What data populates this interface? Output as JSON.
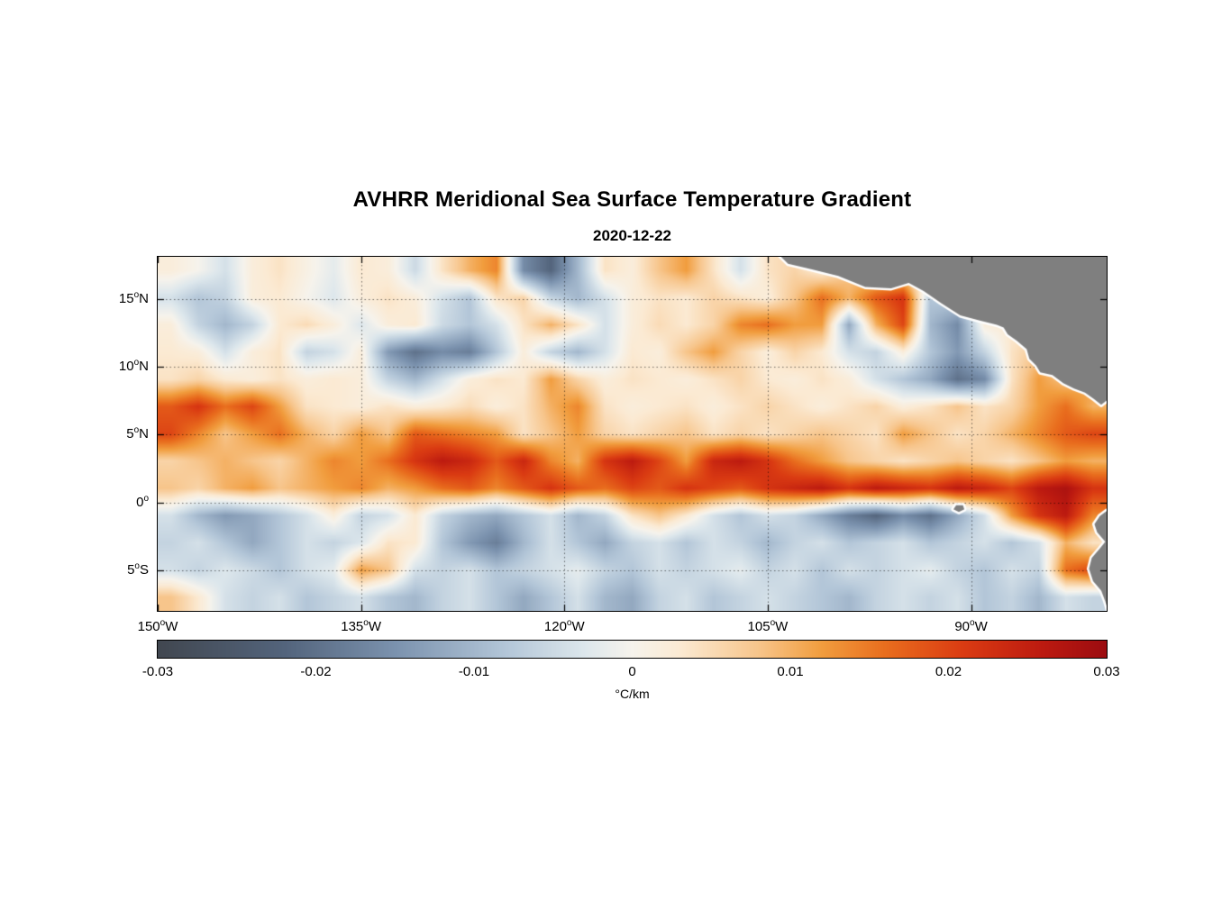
{
  "figure": {
    "title": "AVHRR Meridional Sea Surface Temperature Gradient",
    "subtitle": "2020-12-22"
  },
  "chart_data": {
    "type": "heatmap",
    "title": "AVHRR Meridional Sea Surface Temperature Gradient",
    "date": "2020-12-22",
    "units": "°C/km",
    "x": {
      "range": [
        -150,
        -80
      ],
      "ticks": [
        -150,
        -135,
        -120,
        -105,
        -90
      ],
      "tick_labels": [
        {
          "num": "150",
          "deg": "o",
          "hem": "W"
        },
        {
          "num": "135",
          "deg": "o",
          "hem": "W"
        },
        {
          "num": "120",
          "deg": "o",
          "hem": "W"
        },
        {
          "num": "105",
          "deg": "o",
          "hem": "W"
        },
        {
          "num": "90",
          "deg": "o",
          "hem": "W"
        }
      ]
    },
    "y": {
      "range": [
        18.12,
        -8.0
      ],
      "ticks": [
        15,
        10,
        5,
        0,
        -5
      ],
      "tick_labels": [
        {
          "num": "15",
          "deg": "o",
          "hem": "N"
        },
        {
          "num": "10",
          "deg": "o",
          "hem": "N"
        },
        {
          "num": "5",
          "deg": "o",
          "hem": "N"
        },
        {
          "num": "0",
          "deg": "o",
          "hem": ""
        },
        {
          "num": "5",
          "deg": "o",
          "hem": "S"
        }
      ]
    },
    "grid_on": true,
    "colorbar": {
      "label": "°C/km",
      "range": [
        -0.03,
        0.03
      ],
      "ticks": [
        -0.03,
        -0.02,
        -0.01,
        0,
        0.01,
        0.02,
        0.03
      ],
      "tick_labels": [
        "-0.03",
        "-0.02",
        "-0.01",
        "0",
        "0.01",
        "0.02",
        "0.03"
      ],
      "colormap_stops": [
        {
          "v": -0.03,
          "c": "#414750"
        },
        {
          "v": -0.022,
          "c": "#53647c"
        },
        {
          "v": -0.015,
          "c": "#7b92ae"
        },
        {
          "v": -0.008,
          "c": "#b3c6d8"
        },
        {
          "v": -0.003,
          "c": "#dde7ec"
        },
        {
          "v": 0.0,
          "c": "#f6f3ec"
        },
        {
          "v": 0.003,
          "c": "#fbead3"
        },
        {
          "v": 0.008,
          "c": "#f7c58b"
        },
        {
          "v": 0.012,
          "c": "#f19d3e"
        },
        {
          "v": 0.016,
          "c": "#e96e1e"
        },
        {
          "v": 0.021,
          "c": "#da3b12"
        },
        {
          "v": 0.026,
          "c": "#bc1a10"
        },
        {
          "v": 0.03,
          "c": "#9c0c10"
        }
      ]
    },
    "grid": {
      "lon_centers_start": -149,
      "lon_step": 2,
      "lat_centers_start": 17,
      "lat_step": -2,
      "values": [
        [
          0.002,
          0.0,
          -0.004,
          0.002,
          0.004,
          0.001,
          -0.002,
          0.003,
          0.002,
          -0.005,
          0.004,
          0.01,
          0.014,
          -0.016,
          -0.022,
          -0.01,
          0.004,
          0.002,
          0.008,
          0.012,
          0.004,
          -0.004,
          0.004,
          0.006,
          0.002,
          0.008,
          0.004,
          0.002,
          0.001,
          0.002,
          0.002,
          0.002,
          0.002,
          0.001,
          0.002
        ],
        [
          -0.004,
          -0.008,
          -0.006,
          0.002,
          0.003,
          0.0,
          -0.003,
          0.002,
          0.004,
          0.002,
          -0.004,
          -0.008,
          0.004,
          0.006,
          -0.006,
          -0.01,
          -0.004,
          0.002,
          0.004,
          0.003,
          0.006,
          0.004,
          0.002,
          0.008,
          0.016,
          0.01,
          0.018,
          0.022,
          -0.008,
          -0.006,
          0.002,
          0.004,
          0.002,
          0.002,
          0.002
        ],
        [
          0.002,
          -0.006,
          -0.01,
          -0.006,
          0.003,
          0.005,
          0.002,
          -0.003,
          0.002,
          0.003,
          -0.005,
          -0.008,
          -0.004,
          0.004,
          0.01,
          0.004,
          -0.004,
          0.002,
          0.005,
          0.003,
          0.006,
          0.014,
          0.016,
          0.012,
          0.012,
          -0.012,
          0.01,
          0.02,
          -0.01,
          -0.016,
          0.002,
          0.003,
          0.002,
          0.002,
          0.002
        ],
        [
          0.003,
          0.002,
          -0.004,
          0.002,
          0.004,
          -0.006,
          -0.004,
          0.002,
          -0.014,
          -0.02,
          -0.016,
          -0.018,
          -0.008,
          0.002,
          -0.006,
          -0.01,
          -0.004,
          0.003,
          0.002,
          0.008,
          0.012,
          0.006,
          0.002,
          0.006,
          0.003,
          -0.004,
          -0.006,
          0.002,
          -0.008,
          -0.014,
          -0.006,
          0.004,
          0.008,
          0.004,
          0.003
        ],
        [
          0.004,
          0.006,
          0.003,
          0.002,
          0.004,
          0.002,
          0.003,
          0.002,
          -0.006,
          -0.01,
          -0.004,
          0.002,
          0.004,
          0.003,
          0.012,
          0.006,
          0.002,
          0.004,
          0.003,
          0.002,
          0.004,
          0.006,
          0.003,
          0.002,
          0.004,
          0.002,
          -0.004,
          -0.008,
          -0.012,
          -0.02,
          -0.016,
          0.004,
          0.012,
          0.008,
          0.012
        ],
        [
          0.018,
          0.022,
          0.016,
          0.02,
          0.012,
          0.004,
          0.003,
          0.002,
          0.004,
          0.002,
          0.003,
          0.005,
          0.002,
          0.004,
          0.01,
          0.014,
          0.004,
          0.002,
          0.003,
          0.004,
          0.002,
          0.004,
          0.006,
          0.004,
          0.002,
          0.004,
          0.006,
          0.002,
          0.004,
          0.008,
          0.004,
          0.006,
          0.012,
          0.016,
          0.01
        ],
        [
          0.02,
          0.014,
          0.008,
          0.012,
          0.016,
          0.01,
          0.006,
          0.012,
          0.008,
          0.018,
          0.016,
          0.014,
          0.012,
          0.004,
          0.008,
          0.012,
          0.006,
          0.004,
          0.006,
          0.008,
          0.004,
          0.006,
          0.004,
          0.006,
          0.008,
          0.006,
          0.004,
          0.012,
          0.008,
          0.004,
          0.006,
          0.01,
          0.014,
          0.018,
          0.02
        ],
        [
          0.006,
          0.008,
          0.01,
          0.008,
          0.006,
          0.01,
          0.014,
          0.012,
          0.016,
          0.022,
          0.026,
          0.024,
          0.018,
          0.024,
          0.014,
          0.01,
          0.022,
          0.026,
          0.02,
          0.012,
          0.024,
          0.026,
          0.022,
          0.016,
          0.012,
          0.008,
          0.006,
          0.004,
          0.006,
          0.008,
          0.006,
          0.004,
          0.008,
          0.012,
          0.01
        ],
        [
          0.008,
          0.006,
          0.01,
          0.012,
          0.008,
          0.01,
          0.012,
          0.014,
          0.01,
          0.012,
          0.016,
          0.018,
          0.014,
          0.018,
          0.022,
          0.018,
          0.016,
          0.02,
          0.018,
          0.022,
          0.02,
          0.018,
          0.022,
          0.024,
          0.026,
          0.022,
          0.026,
          0.024,
          0.022,
          0.026,
          0.024,
          0.02,
          0.026,
          0.028,
          0.022
        ],
        [
          -0.004,
          -0.01,
          -0.014,
          -0.012,
          -0.008,
          -0.004,
          0.002,
          -0.006,
          -0.004,
          0.003,
          -0.006,
          -0.01,
          -0.012,
          -0.008,
          -0.004,
          -0.01,
          -0.006,
          0.004,
          0.008,
          0.003,
          -0.004,
          -0.008,
          -0.004,
          -0.006,
          -0.012,
          -0.018,
          -0.022,
          -0.016,
          -0.02,
          -0.012,
          -0.004,
          0.012,
          0.022,
          0.026,
          0.014
        ],
        [
          -0.006,
          -0.004,
          -0.008,
          -0.012,
          -0.008,
          -0.004,
          -0.006,
          -0.003,
          0.004,
          0.003,
          -0.008,
          -0.014,
          -0.018,
          -0.01,
          -0.004,
          -0.008,
          -0.012,
          -0.006,
          -0.004,
          -0.008,
          -0.004,
          -0.006,
          -0.01,
          -0.006,
          -0.004,
          -0.008,
          -0.006,
          -0.004,
          -0.008,
          -0.006,
          -0.004,
          -0.008,
          -0.004,
          0.01,
          0.004
        ],
        [
          -0.004,
          -0.006,
          -0.003,
          -0.005,
          -0.008,
          -0.004,
          -0.002,
          0.012,
          0.008,
          -0.004,
          -0.006,
          -0.004,
          -0.008,
          -0.006,
          -0.004,
          -0.002,
          -0.006,
          -0.008,
          -0.004,
          -0.006,
          -0.004,
          -0.002,
          -0.006,
          -0.004,
          -0.008,
          -0.004,
          -0.006,
          -0.004,
          -0.002,
          -0.006,
          -0.008,
          -0.004,
          -0.006,
          0.016,
          0.02
        ],
        [
          0.008,
          0.003,
          -0.004,
          -0.006,
          -0.004,
          -0.008,
          -0.006,
          -0.004,
          -0.008,
          -0.01,
          -0.006,
          -0.004,
          -0.008,
          -0.012,
          -0.008,
          -0.004,
          -0.01,
          -0.012,
          -0.006,
          -0.004,
          -0.008,
          -0.006,
          -0.004,
          -0.006,
          -0.008,
          -0.01,
          -0.006,
          -0.004,
          -0.006,
          -0.004,
          -0.008,
          -0.006,
          -0.01,
          -0.004,
          -0.006
        ]
      ]
    },
    "land": {
      "color": "#7f7f7f",
      "coast_halo": "#ffffff",
      "polygons": [
        {
          "name": "central-america",
          "points": [
            [
              -104.3,
              18.4
            ],
            [
              -103.5,
              17.6
            ],
            [
              -101.8,
              17.2
            ],
            [
              -99.8,
              16.7
            ],
            [
              -97.8,
              15.9
            ],
            [
              -95.9,
              15.8
            ],
            [
              -94.6,
              16.2
            ],
            [
              -93.5,
              15.6
            ],
            [
              -92.2,
              14.7
            ],
            [
              -90.8,
              13.8
            ],
            [
              -89.3,
              13.4
            ],
            [
              -88.1,
              13.1
            ],
            [
              -87.6,
              12.9
            ],
            [
              -87.3,
              12.4
            ],
            [
              -86.6,
              11.9
            ],
            [
              -85.9,
              11.3
            ],
            [
              -85.7,
              10.6
            ],
            [
              -85.2,
              10.1
            ],
            [
              -84.9,
              9.6
            ],
            [
              -84.0,
              9.4
            ],
            [
              -83.2,
              8.8
            ],
            [
              -82.4,
              8.4
            ],
            [
              -81.6,
              8.1
            ],
            [
              -80.9,
              7.6
            ],
            [
              -80.4,
              7.2
            ],
            [
              -79.9,
              7.6
            ],
            [
              -79.3,
              8.5
            ],
            [
              -79.3,
              18.4
            ]
          ]
        },
        {
          "name": "south-america",
          "points": [
            [
              -79.3,
              -0.2
            ],
            [
              -80.1,
              -0.7
            ],
            [
              -80.5,
              -1.0
            ],
            [
              -80.9,
              -1.6
            ],
            [
              -80.7,
              -2.2
            ],
            [
              -80.1,
              -2.9
            ],
            [
              -80.5,
              -3.4
            ],
            [
              -81.1,
              -4.1
            ],
            [
              -81.3,
              -4.9
            ],
            [
              -81.0,
              -5.8
            ],
            [
              -80.4,
              -6.5
            ],
            [
              -80.1,
              -7.3
            ],
            [
              -79.8,
              -8.3
            ],
            [
              -79.3,
              -8.3
            ]
          ]
        },
        {
          "name": "galapagos",
          "points": [
            [
              -91.1,
              -0.2
            ],
            [
              -90.6,
              -0.2
            ],
            [
              -90.5,
              -0.5
            ],
            [
              -90.9,
              -0.7
            ],
            [
              -91.3,
              -0.5
            ]
          ]
        }
      ]
    }
  }
}
